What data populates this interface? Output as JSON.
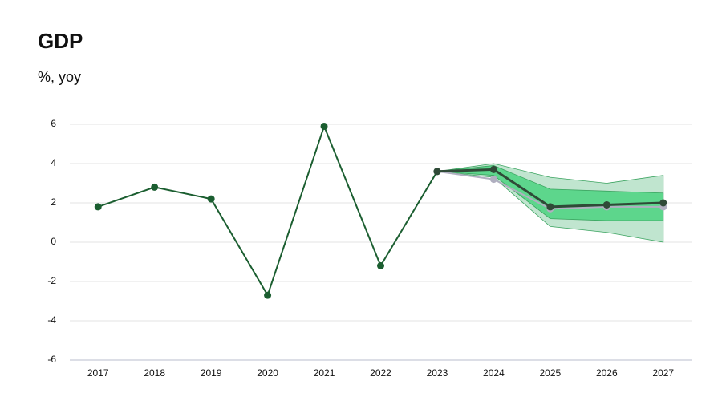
{
  "chart_data": {
    "type": "fan-line",
    "title": "GDP",
    "subtitle": "%, yoy",
    "categories": [
      "2017",
      "2018",
      "2019",
      "2020",
      "2021",
      "2022",
      "2023",
      "2024",
      "2025",
      "2026",
      "2027"
    ],
    "ylim": [
      -6,
      6
    ],
    "yticks": [
      -6,
      -4,
      -2,
      0,
      2,
      4,
      6
    ],
    "grid": true,
    "bands": [
      {
        "color": "#c0e5cf",
        "lower": [
          null,
          null,
          null,
          null,
          null,
          null,
          3.6,
          3.3,
          0.8,
          0.5,
          0.0
        ],
        "upper": [
          null,
          null,
          null,
          null,
          null,
          null,
          3.6,
          4.0,
          3.3,
          3.0,
          3.4
        ]
      },
      {
        "color": "#5dd68c",
        "lower": [
          null,
          null,
          null,
          null,
          null,
          null,
          3.6,
          3.4,
          1.2,
          1.1,
          1.1
        ],
        "upper": [
          null,
          null,
          null,
          null,
          null,
          null,
          3.6,
          3.9,
          2.7,
          2.6,
          2.5
        ]
      }
    ],
    "series": [
      {
        "color": "#b0afc0",
        "values": [
          null,
          null,
          null,
          null,
          null,
          null,
          3.6,
          3.2,
          1.7,
          1.8,
          1.8
        ]
      },
      {
        "color": "#1b5e30",
        "values": [
          1.8,
          2.8,
          2.2,
          -2.7,
          5.9,
          -1.2,
          3.6,
          null,
          null,
          null,
          null
        ]
      },
      {
        "color": "#2f4a37",
        "values": [
          null,
          null,
          null,
          null,
          null,
          null,
          3.6,
          3.7,
          1.8,
          1.9,
          2.0
        ]
      }
    ]
  }
}
